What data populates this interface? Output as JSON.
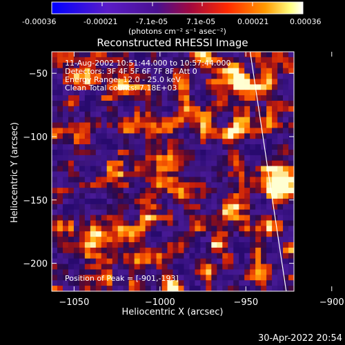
{
  "colorbar": {
    "tick_labels": [
      "-0.00036",
      "-0.00021",
      "-7.1e-05",
      "7.1e-05",
      "0.00021",
      "0.00036"
    ],
    "unit_label": "(photons cm⁻² s⁻¹ asec⁻²)",
    "range": [
      -0.00036,
      0.00036
    ]
  },
  "chart_data": {
    "type": "heatmap",
    "title": "Reconstructed RHESSI Image",
    "xlabel": "Heliocentric X (arcsec)",
    "ylabel": "Heliocentric Y (arcsec)",
    "xlim": [
      -1063,
      -922
    ],
    "ylim": [
      -222,
      -33
    ],
    "xticks": [
      -1050,
      -1000,
      -950,
      -900
    ],
    "yticks": [
      -50,
      -100,
      -150,
      -200
    ],
    "xtick_labels": [
      "−1050",
      "−1000",
      "−950",
      "−900"
    ],
    "ytick_labels": [
      "−50",
      "−100",
      "−150",
      "−200"
    ],
    "colormap": [
      "#0000ff",
      "#6a1aa8",
      "#3a1078",
      "#c0200a",
      "#ff7a00",
      "#ffffff"
    ],
    "limb_line": {
      "x": [
        -947.5,
        -926.5
      ],
      "y": [
        -33,
        -222
      ]
    },
    "peak": {
      "x": -901,
      "y": -193
    },
    "annotations": [
      "11-Aug-2002 10:51:44.000 to 10:57:44.000",
      "Detectors: 3F 4F 5F 6F 7F 8F, Att 0",
      "Energy Range: 12.0 - 25.0 keV",
      "Clean    Total counts: 7.18E+03"
    ],
    "peak_label": "Position of Peak = [-901,-193]"
  },
  "footer": {
    "date": "30-Apr-2022 20:54"
  }
}
